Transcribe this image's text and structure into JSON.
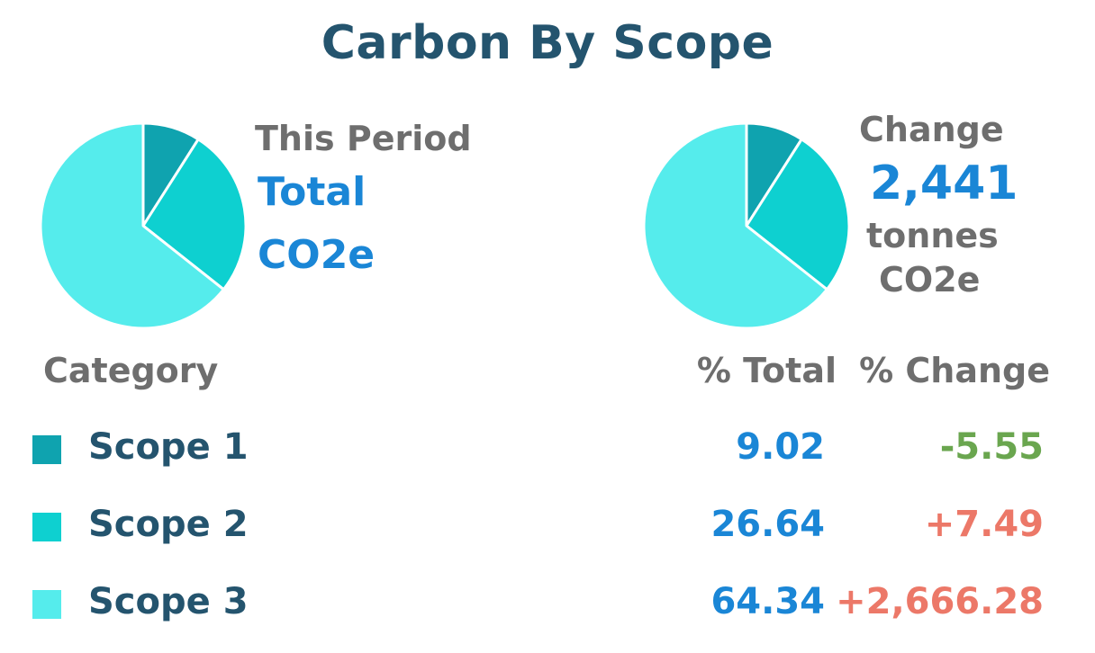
{
  "title": "Carbon By Scope",
  "left_panel": {
    "line1": "This Period",
    "line2": "Total",
    "line3": "CO2e"
  },
  "right_panel": {
    "line1": "Change",
    "value": "2,441",
    "line3": "tonnes",
    "line4": "CO2e"
  },
  "table": {
    "headers": {
      "category": "Category",
      "pct_total": "% Total",
      "pct_change": "% Change"
    },
    "rows": [
      {
        "name": "Scope 1",
        "pct_total": "9.02",
        "pct_change": "-5.55",
        "trend": "down"
      },
      {
        "name": "Scope 2",
        "pct_total": "26.64",
        "pct_change": "+7.49",
        "trend": "up"
      },
      {
        "name": "Scope 3",
        "pct_total": "64.34",
        "pct_change": "+2,666.28",
        "trend": "up"
      }
    ]
  },
  "colors": {
    "scope1": "#0fa3af",
    "scope2": "#0ed0d0",
    "scope3": "#55ecec",
    "title": "#24546e",
    "accent_blue": "#1a86d6",
    "negative": "#6aa64f",
    "positive": "#ec7868"
  },
  "chart_data": [
    {
      "type": "pie",
      "categories": [
        "Scope 1",
        "Scope 2",
        "Scope 3"
      ],
      "values": [
        9.02,
        26.64,
        64.34
      ]
    },
    {
      "type": "pie",
      "categories": [
        "Scope 1",
        "Scope 2",
        "Scope 3"
      ],
      "values": [
        9.02,
        26.64,
        64.34
      ]
    }
  ]
}
